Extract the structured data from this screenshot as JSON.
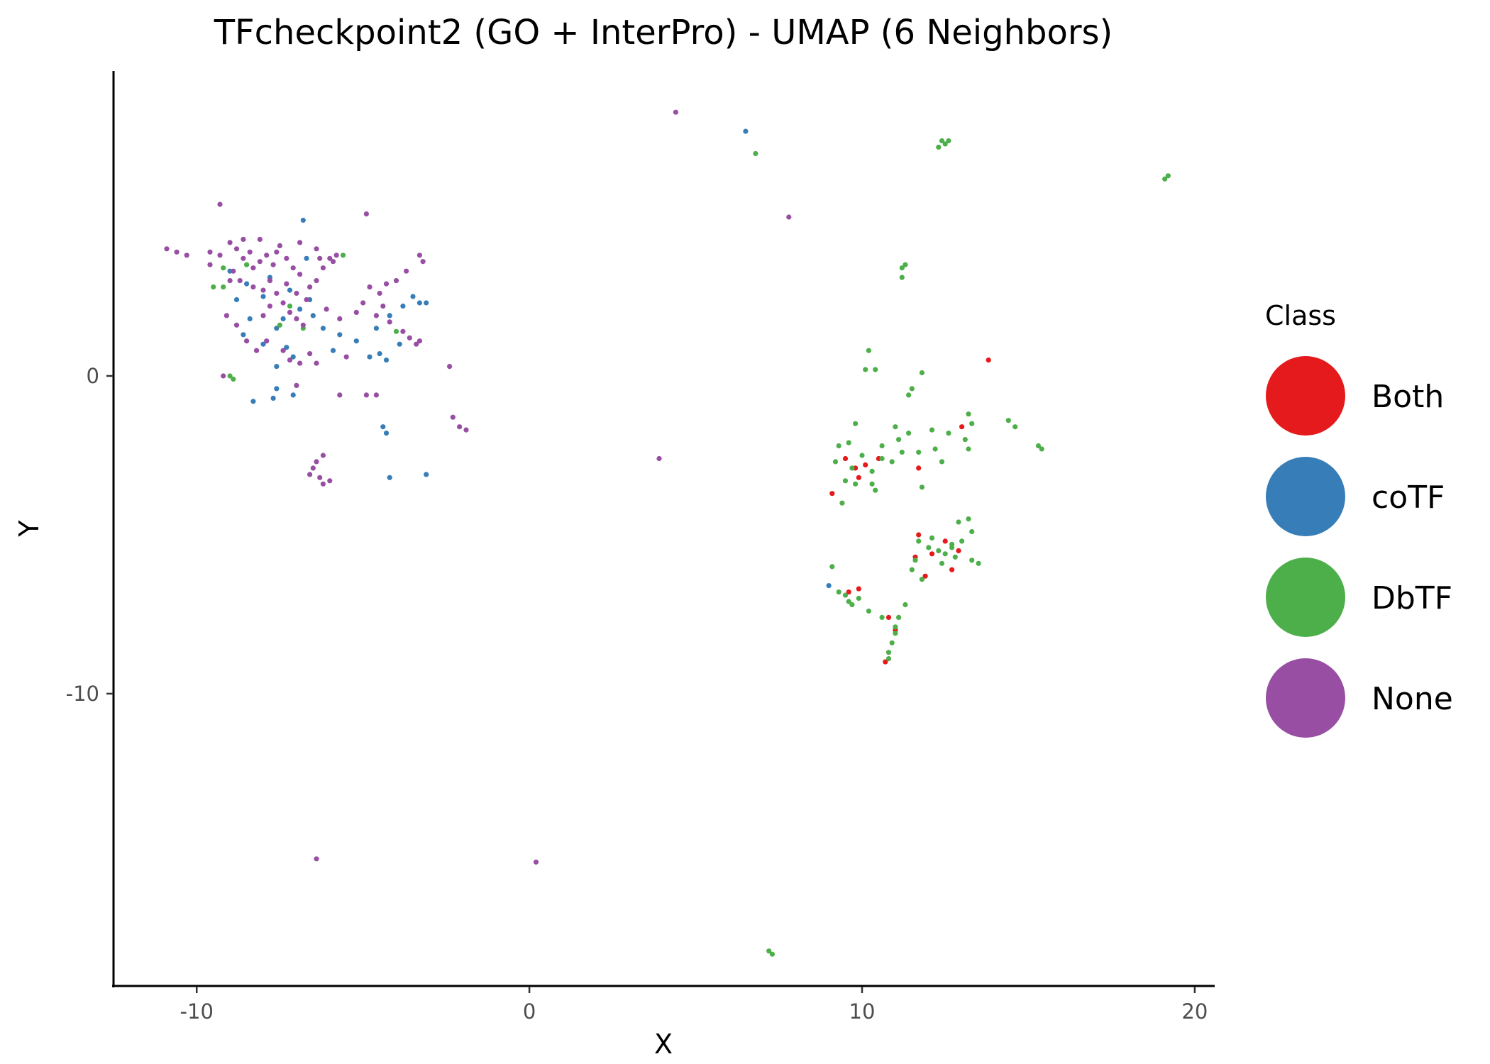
{
  "chart_data": {
    "type": "scatter",
    "title": "TFcheckpoint2 (GO + InterPro) - UMAP (6 Neighbors)",
    "xlabel": "X",
    "ylabel": "Y",
    "xlim": [
      -12.5,
      20.6
    ],
    "ylim": [
      -19.2,
      9.6
    ],
    "xticks": [
      -10,
      0,
      10,
      20
    ],
    "xtick_labels": [
      "-10",
      "0",
      "10",
      "20"
    ],
    "yticks": [
      0,
      -10
    ],
    "ytick_labels": [
      "0",
      "-10"
    ],
    "grid": false,
    "legend": {
      "title": "Class",
      "position": "right"
    },
    "series": [
      {
        "name": "Both",
        "color": "#E41A1C",
        "points": [
          [
            9.5,
            -2.6
          ],
          [
            9.8,
            -2.9
          ],
          [
            10.1,
            -2.8
          ],
          [
            10.5,
            -2.6
          ],
          [
            9.1,
            -3.7
          ],
          [
            9.9,
            -3.2
          ],
          [
            11.7,
            -5.0
          ],
          [
            12.1,
            -5.6
          ],
          [
            12.5,
            -5.2
          ],
          [
            11.9,
            -6.3
          ],
          [
            12.7,
            -6.1
          ],
          [
            10.8,
            -7.6
          ],
          [
            11.0,
            -8.0
          ],
          [
            10.7,
            -9.0
          ],
          [
            9.6,
            -6.8
          ],
          [
            9.9,
            -6.7
          ],
          [
            13.0,
            -1.6
          ],
          [
            13.8,
            0.5
          ],
          [
            11.7,
            -2.9
          ],
          [
            12.9,
            -5.5
          ],
          [
            11.6,
            -5.7
          ]
        ]
      },
      {
        "name": "coTF",
        "color": "#377EB8",
        "points": [
          [
            -9.0,
            3.3
          ],
          [
            -8.5,
            2.9
          ],
          [
            -8.0,
            2.5
          ],
          [
            -8.4,
            1.8
          ],
          [
            -7.6,
            1.5
          ],
          [
            -7.2,
            2.7
          ],
          [
            -7.8,
            3.1
          ],
          [
            -6.9,
            2.1
          ],
          [
            -6.6,
            2.4
          ],
          [
            -7.3,
            0.9
          ],
          [
            -7.1,
            0.6
          ],
          [
            -7.6,
            0.3
          ],
          [
            -8.0,
            1.0
          ],
          [
            -8.6,
            1.3
          ],
          [
            -6.5,
            1.9
          ],
          [
            -6.2,
            1.5
          ],
          [
            -5.7,
            1.3
          ],
          [
            -5.2,
            1.1
          ],
          [
            -4.6,
            1.5
          ],
          [
            -4.2,
            1.9
          ],
          [
            -3.8,
            2.2
          ],
          [
            -3.5,
            2.5
          ],
          [
            -3.3,
            2.3
          ],
          [
            -3.1,
            2.3
          ],
          [
            -4.8,
            0.6
          ],
          [
            -4.5,
            0.7
          ],
          [
            -4.3,
            0.5
          ],
          [
            -7.7,
            -0.7
          ],
          [
            -7.6,
            -0.4
          ],
          [
            -8.3,
            -0.8
          ],
          [
            -7.1,
            -0.6
          ],
          [
            -4.4,
            -1.6
          ],
          [
            -4.3,
            -1.8
          ],
          [
            -4.2,
            -3.2
          ],
          [
            -3.1,
            -3.1
          ],
          [
            -6.8,
            4.9
          ],
          [
            6.5,
            7.7
          ],
          [
            -6.7,
            3.7
          ],
          [
            -7.4,
            1.8
          ],
          [
            -8.8,
            2.4
          ],
          [
            -5.9,
            0.8
          ],
          [
            -3.9,
            1.0
          ],
          [
            9.0,
            -6.6
          ]
        ]
      },
      {
        "name": "DbTF",
        "color": "#4DAF4A",
        "points": [
          [
            12.4,
            7.4
          ],
          [
            12.6,
            7.4
          ],
          [
            12.5,
            7.3
          ],
          [
            12.3,
            7.2
          ],
          [
            6.8,
            7.0
          ],
          [
            19.1,
            6.2
          ],
          [
            19.2,
            6.3
          ],
          [
            11.2,
            3.4
          ],
          [
            11.3,
            3.5
          ],
          [
            11.2,
            3.1
          ],
          [
            10.2,
            0.8
          ],
          [
            10.1,
            0.2
          ],
          [
            10.4,
            0.2
          ],
          [
            11.8,
            0.1
          ],
          [
            11.5,
            -0.4
          ],
          [
            11.4,
            -0.6
          ],
          [
            13.2,
            -1.2
          ],
          [
            13.3,
            -1.5
          ],
          [
            13.1,
            -2.0
          ],
          [
            13.2,
            -2.3
          ],
          [
            14.4,
            -1.4
          ],
          [
            14.6,
            -1.6
          ],
          [
            15.3,
            -2.2
          ],
          [
            15.4,
            -2.3
          ],
          [
            9.8,
            -1.5
          ],
          [
            9.6,
            -2.1
          ],
          [
            9.3,
            -2.2
          ],
          [
            9.2,
            -2.7
          ],
          [
            9.7,
            -2.9
          ],
          [
            10.0,
            -2.5
          ],
          [
            10.3,
            -3.0
          ],
          [
            10.6,
            -2.6
          ],
          [
            10.9,
            -2.7
          ],
          [
            10.6,
            -2.2
          ],
          [
            11.1,
            -2.0
          ],
          [
            11.4,
            -1.8
          ],
          [
            11.0,
            -1.6
          ],
          [
            11.7,
            -2.4
          ],
          [
            12.2,
            -2.3
          ],
          [
            12.4,
            -2.7
          ],
          [
            12.1,
            -1.7
          ],
          [
            12.6,
            -1.8
          ],
          [
            9.5,
            -3.3
          ],
          [
            9.8,
            -3.4
          ],
          [
            10.3,
            -3.4
          ],
          [
            9.4,
            -4.0
          ],
          [
            10.4,
            -3.6
          ],
          [
            11.8,
            -3.5
          ],
          [
            11.2,
            -2.4
          ],
          [
            12.9,
            -4.6
          ],
          [
            13.2,
            -4.5
          ],
          [
            13.3,
            -4.9
          ],
          [
            13.0,
            -5.2
          ],
          [
            12.7,
            -5.3
          ],
          [
            12.3,
            -5.5
          ],
          [
            12.0,
            -5.4
          ],
          [
            11.7,
            -5.2
          ],
          [
            11.6,
            -5.8
          ],
          [
            12.4,
            -5.9
          ],
          [
            12.8,
            -5.7
          ],
          [
            13.3,
            -5.8
          ],
          [
            13.5,
            -5.9
          ],
          [
            11.8,
            -6.4
          ],
          [
            11.5,
            -6.1
          ],
          [
            9.3,
            -6.8
          ],
          [
            9.5,
            -6.9
          ],
          [
            9.6,
            -7.1
          ],
          [
            9.9,
            -7.0
          ],
          [
            9.7,
            -7.2
          ],
          [
            9.1,
            -6.0
          ],
          [
            10.2,
            -7.4
          ],
          [
            10.6,
            -7.6
          ],
          [
            11.3,
            -7.2
          ],
          [
            11.1,
            -7.6
          ],
          [
            11.0,
            -8.1
          ],
          [
            10.9,
            -8.4
          ],
          [
            10.8,
            -8.7
          ],
          [
            10.8,
            -8.9
          ],
          [
            11.0,
            -7.9
          ],
          [
            7.2,
            -18.1
          ],
          [
            7.3,
            -18.2
          ],
          [
            -9.5,
            2.8
          ],
          [
            -9.2,
            2.8
          ],
          [
            -9.0,
            0.0
          ],
          [
            -8.5,
            3.5
          ],
          [
            -7.2,
            2.2
          ],
          [
            -7.5,
            1.6
          ],
          [
            -6.8,
            1.5
          ],
          [
            -4.0,
            1.4
          ],
          [
            -8.9,
            -0.1
          ],
          [
            -5.6,
            3.8
          ],
          [
            -9.2,
            3.4
          ],
          [
            12.5,
            -5.6
          ],
          [
            12.7,
            -5.4
          ],
          [
            12.1,
            -5.1
          ]
        ]
      },
      {
        "name": "None",
        "color": "#984EA3",
        "points": [
          [
            4.4,
            8.3
          ],
          [
            7.8,
            5.0
          ],
          [
            -9.3,
            5.4
          ],
          [
            -4.9,
            5.1
          ],
          [
            -10.9,
            4.0
          ],
          [
            -10.6,
            3.9
          ],
          [
            -10.3,
            3.8
          ],
          [
            -9.6,
            3.9
          ],
          [
            -9.3,
            3.8
          ],
          [
            -9.0,
            4.2
          ],
          [
            -8.8,
            4.0
          ],
          [
            -8.6,
            3.7
          ],
          [
            -8.4,
            3.9
          ],
          [
            -8.1,
            3.6
          ],
          [
            -7.9,
            3.8
          ],
          [
            -7.7,
            3.5
          ],
          [
            -7.5,
            4.1
          ],
          [
            -7.3,
            3.7
          ],
          [
            -7.1,
            3.4
          ],
          [
            -6.9,
            3.2
          ],
          [
            -8.9,
            3.3
          ],
          [
            -8.7,
            3.0
          ],
          [
            -8.3,
            2.8
          ],
          [
            -8.0,
            2.7
          ],
          [
            -7.8,
            2.2
          ],
          [
            -7.6,
            2.6
          ],
          [
            -7.4,
            2.3
          ],
          [
            -7.2,
            2.0
          ],
          [
            -7.0,
            1.8
          ],
          [
            -6.8,
            1.6
          ],
          [
            -7.0,
            2.6
          ],
          [
            -6.6,
            2.8
          ],
          [
            -6.4,
            3.0
          ],
          [
            -6.2,
            3.4
          ],
          [
            -6.0,
            3.7
          ],
          [
            -5.8,
            3.8
          ],
          [
            -6.3,
            3.7
          ],
          [
            -5.9,
            3.6
          ],
          [
            -9.1,
            1.9
          ],
          [
            -8.8,
            1.6
          ],
          [
            -8.5,
            1.1
          ],
          [
            -8.2,
            0.8
          ],
          [
            -7.9,
            1.1
          ],
          [
            -7.4,
            0.8
          ],
          [
            -7.2,
            0.5
          ],
          [
            -6.9,
            0.4
          ],
          [
            -6.6,
            0.7
          ],
          [
            -6.4,
            0.4
          ],
          [
            -5.5,
            0.6
          ],
          [
            -5.2,
            2.0
          ],
          [
            -5.0,
            2.3
          ],
          [
            -4.8,
            2.8
          ],
          [
            -4.5,
            2.6
          ],
          [
            -4.3,
            2.9
          ],
          [
            -4.0,
            3.0
          ],
          [
            -3.7,
            3.3
          ],
          [
            -3.3,
            3.8
          ],
          [
            -3.2,
            3.6
          ],
          [
            -4.6,
            1.9
          ],
          [
            -4.2,
            1.7
          ],
          [
            -3.8,
            1.4
          ],
          [
            -3.6,
            1.2
          ],
          [
            -3.4,
            1.0
          ],
          [
            -3.3,
            1.1
          ],
          [
            -9.2,
            0.0
          ],
          [
            -7.0,
            -0.3
          ],
          [
            -5.7,
            -0.6
          ],
          [
            -4.9,
            -0.6
          ],
          [
            -4.6,
            -0.6
          ],
          [
            -6.5,
            -2.9
          ],
          [
            -6.6,
            -3.1
          ],
          [
            -6.3,
            -3.2
          ],
          [
            -6.4,
            -2.7
          ],
          [
            -6.2,
            -3.4
          ],
          [
            -6.0,
            -3.3
          ],
          [
            -6.2,
            -2.5
          ],
          [
            -2.4,
            0.3
          ],
          [
            -2.3,
            -1.3
          ],
          [
            -2.1,
            -1.6
          ],
          [
            -1.9,
            -1.7
          ],
          [
            3.9,
            -2.6
          ],
          [
            -6.4,
            -15.2
          ],
          [
            0.2,
            -15.3
          ],
          [
            -8.6,
            4.3
          ],
          [
            -8.1,
            4.3
          ],
          [
            -6.9,
            4.2
          ],
          [
            -6.4,
            4.0
          ],
          [
            -9.6,
            3.5
          ],
          [
            -7.8,
            3.0
          ],
          [
            -7.3,
            2.9
          ],
          [
            -8.0,
            1.9
          ],
          [
            -6.1,
            2.1
          ],
          [
            -5.7,
            1.8
          ],
          [
            -8.3,
            3.4
          ],
          [
            -7.6,
            3.9
          ],
          [
            -9.0,
            3.0
          ],
          [
            -6.7,
            2.4
          ],
          [
            -4.4,
            2.2
          ]
        ]
      }
    ]
  }
}
